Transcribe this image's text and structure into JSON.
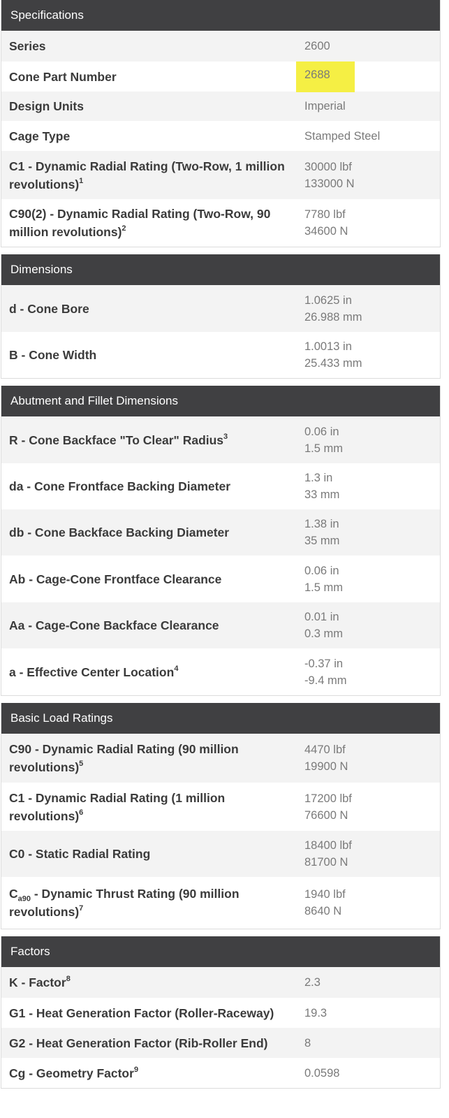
{
  "specifications": {
    "title": "Specifications",
    "rows": [
      {
        "label": "Series",
        "values": [
          "2600"
        ]
      },
      {
        "label": "Cone Part Number",
        "values": [
          "2688"
        ]
      },
      {
        "label": "Design Units",
        "values": [
          "Imperial"
        ]
      },
      {
        "label": "Cage Type",
        "values": [
          "Stamped Steel"
        ]
      },
      {
        "label": "C1 - Dynamic Radial Rating (Two-Row, 1 million revolutions)",
        "sup": "1",
        "values": [
          "30000 lbf",
          "133000 N"
        ]
      },
      {
        "label": "C90(2) - Dynamic Radial Rating (Two-Row, 90 million revolutions)",
        "sup": "2",
        "values": [
          "7780 lbf",
          "34600 N"
        ]
      }
    ]
  },
  "dimensions": {
    "title": "Dimensions",
    "rows": [
      {
        "label": "d - Cone Bore",
        "values": [
          "1.0625 in",
          "26.988 mm"
        ]
      },
      {
        "label": "B - Cone Width",
        "values": [
          "1.0013 in",
          "25.433 mm"
        ]
      }
    ]
  },
  "abutment": {
    "title": "Abutment and Fillet Dimensions",
    "rows": [
      {
        "label": "R - Cone Backface \"To Clear\" Radius",
        "sup": "3",
        "values": [
          "0.06 in",
          "1.5 mm"
        ]
      },
      {
        "label": "da - Cone Frontface Backing Diameter",
        "values": [
          "1.3 in",
          "33 mm"
        ]
      },
      {
        "label": "db - Cone Backface Backing Diameter",
        "values": [
          "1.38 in",
          "35 mm"
        ]
      },
      {
        "label": "Ab - Cage-Cone Frontface Clearance",
        "values": [
          "0.06 in",
          "1.5 mm"
        ]
      },
      {
        "label": "Aa - Cage-Cone Backface Clearance",
        "values": [
          "0.01 in",
          "0.3 mm"
        ]
      },
      {
        "label": "a - Effective Center Location",
        "sup": "4",
        "values": [
          "-0.37 in",
          "-9.4 mm"
        ]
      }
    ]
  },
  "load_ratings": {
    "title": "Basic Load Ratings",
    "rows": [
      {
        "label": "C90 - Dynamic Radial Rating (90 million revolutions)",
        "sup": "5",
        "values": [
          "4470 lbf",
          "19900 N"
        ]
      },
      {
        "label": "C1 - Dynamic Radial Rating (1 million revolutions)",
        "sup": "6",
        "values": [
          "17200 lbf",
          "76600 N"
        ]
      },
      {
        "label": "C0 - Static Radial Rating",
        "values": [
          "18400 lbf",
          "81700 N"
        ]
      },
      {
        "label_prefix": "C",
        "label_sub": "a90",
        "label": " - Dynamic Thrust Rating (90 million revolutions)",
        "sup": "7",
        "values": [
          "1940 lbf",
          "8640 N"
        ]
      }
    ]
  },
  "factors": {
    "title": "Factors",
    "rows": [
      {
        "label": "K - Factor",
        "sup": "8",
        "values": [
          "2.3"
        ]
      },
      {
        "label": "G1 - Heat Generation Factor (Roller-Raceway)",
        "values": [
          "19.3"
        ]
      },
      {
        "label": "G2 - Heat Generation Factor (Rib-Roller End)",
        "values": [
          "8"
        ]
      },
      {
        "label": "Cg - Geometry Factor",
        "sup": "9",
        "values": [
          "0.0598"
        ]
      }
    ]
  },
  "colors": {
    "header_bg": "#404042",
    "highlight": "#f5ef44"
  }
}
